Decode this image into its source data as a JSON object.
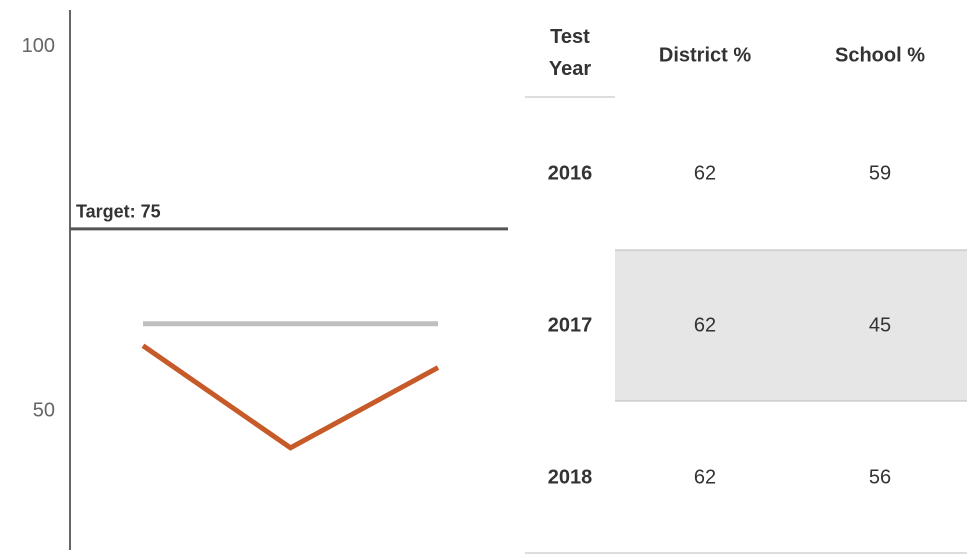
{
  "chart_data": {
    "type": "line",
    "series": [
      {
        "color": "#bfbfbf",
        "values": [
          62,
          62,
          62
        ]
      },
      {
        "color": "#c65a28",
        "values": [
          59,
          45,
          56
        ]
      }
    ],
    "ylim": [
      31,
      105
    ],
    "yticks": [
      50,
      100
    ],
    "annotation": {
      "label": "Target: 75",
      "value": 75
    }
  },
  "table": {
    "header": [
      "Test Year",
      "District %",
      "School %"
    ],
    "rows": [
      [
        "2016",
        "62",
        "59"
      ],
      [
        "2017",
        "62",
        "45"
      ],
      [
        "2018",
        "62",
        "56"
      ]
    ]
  }
}
